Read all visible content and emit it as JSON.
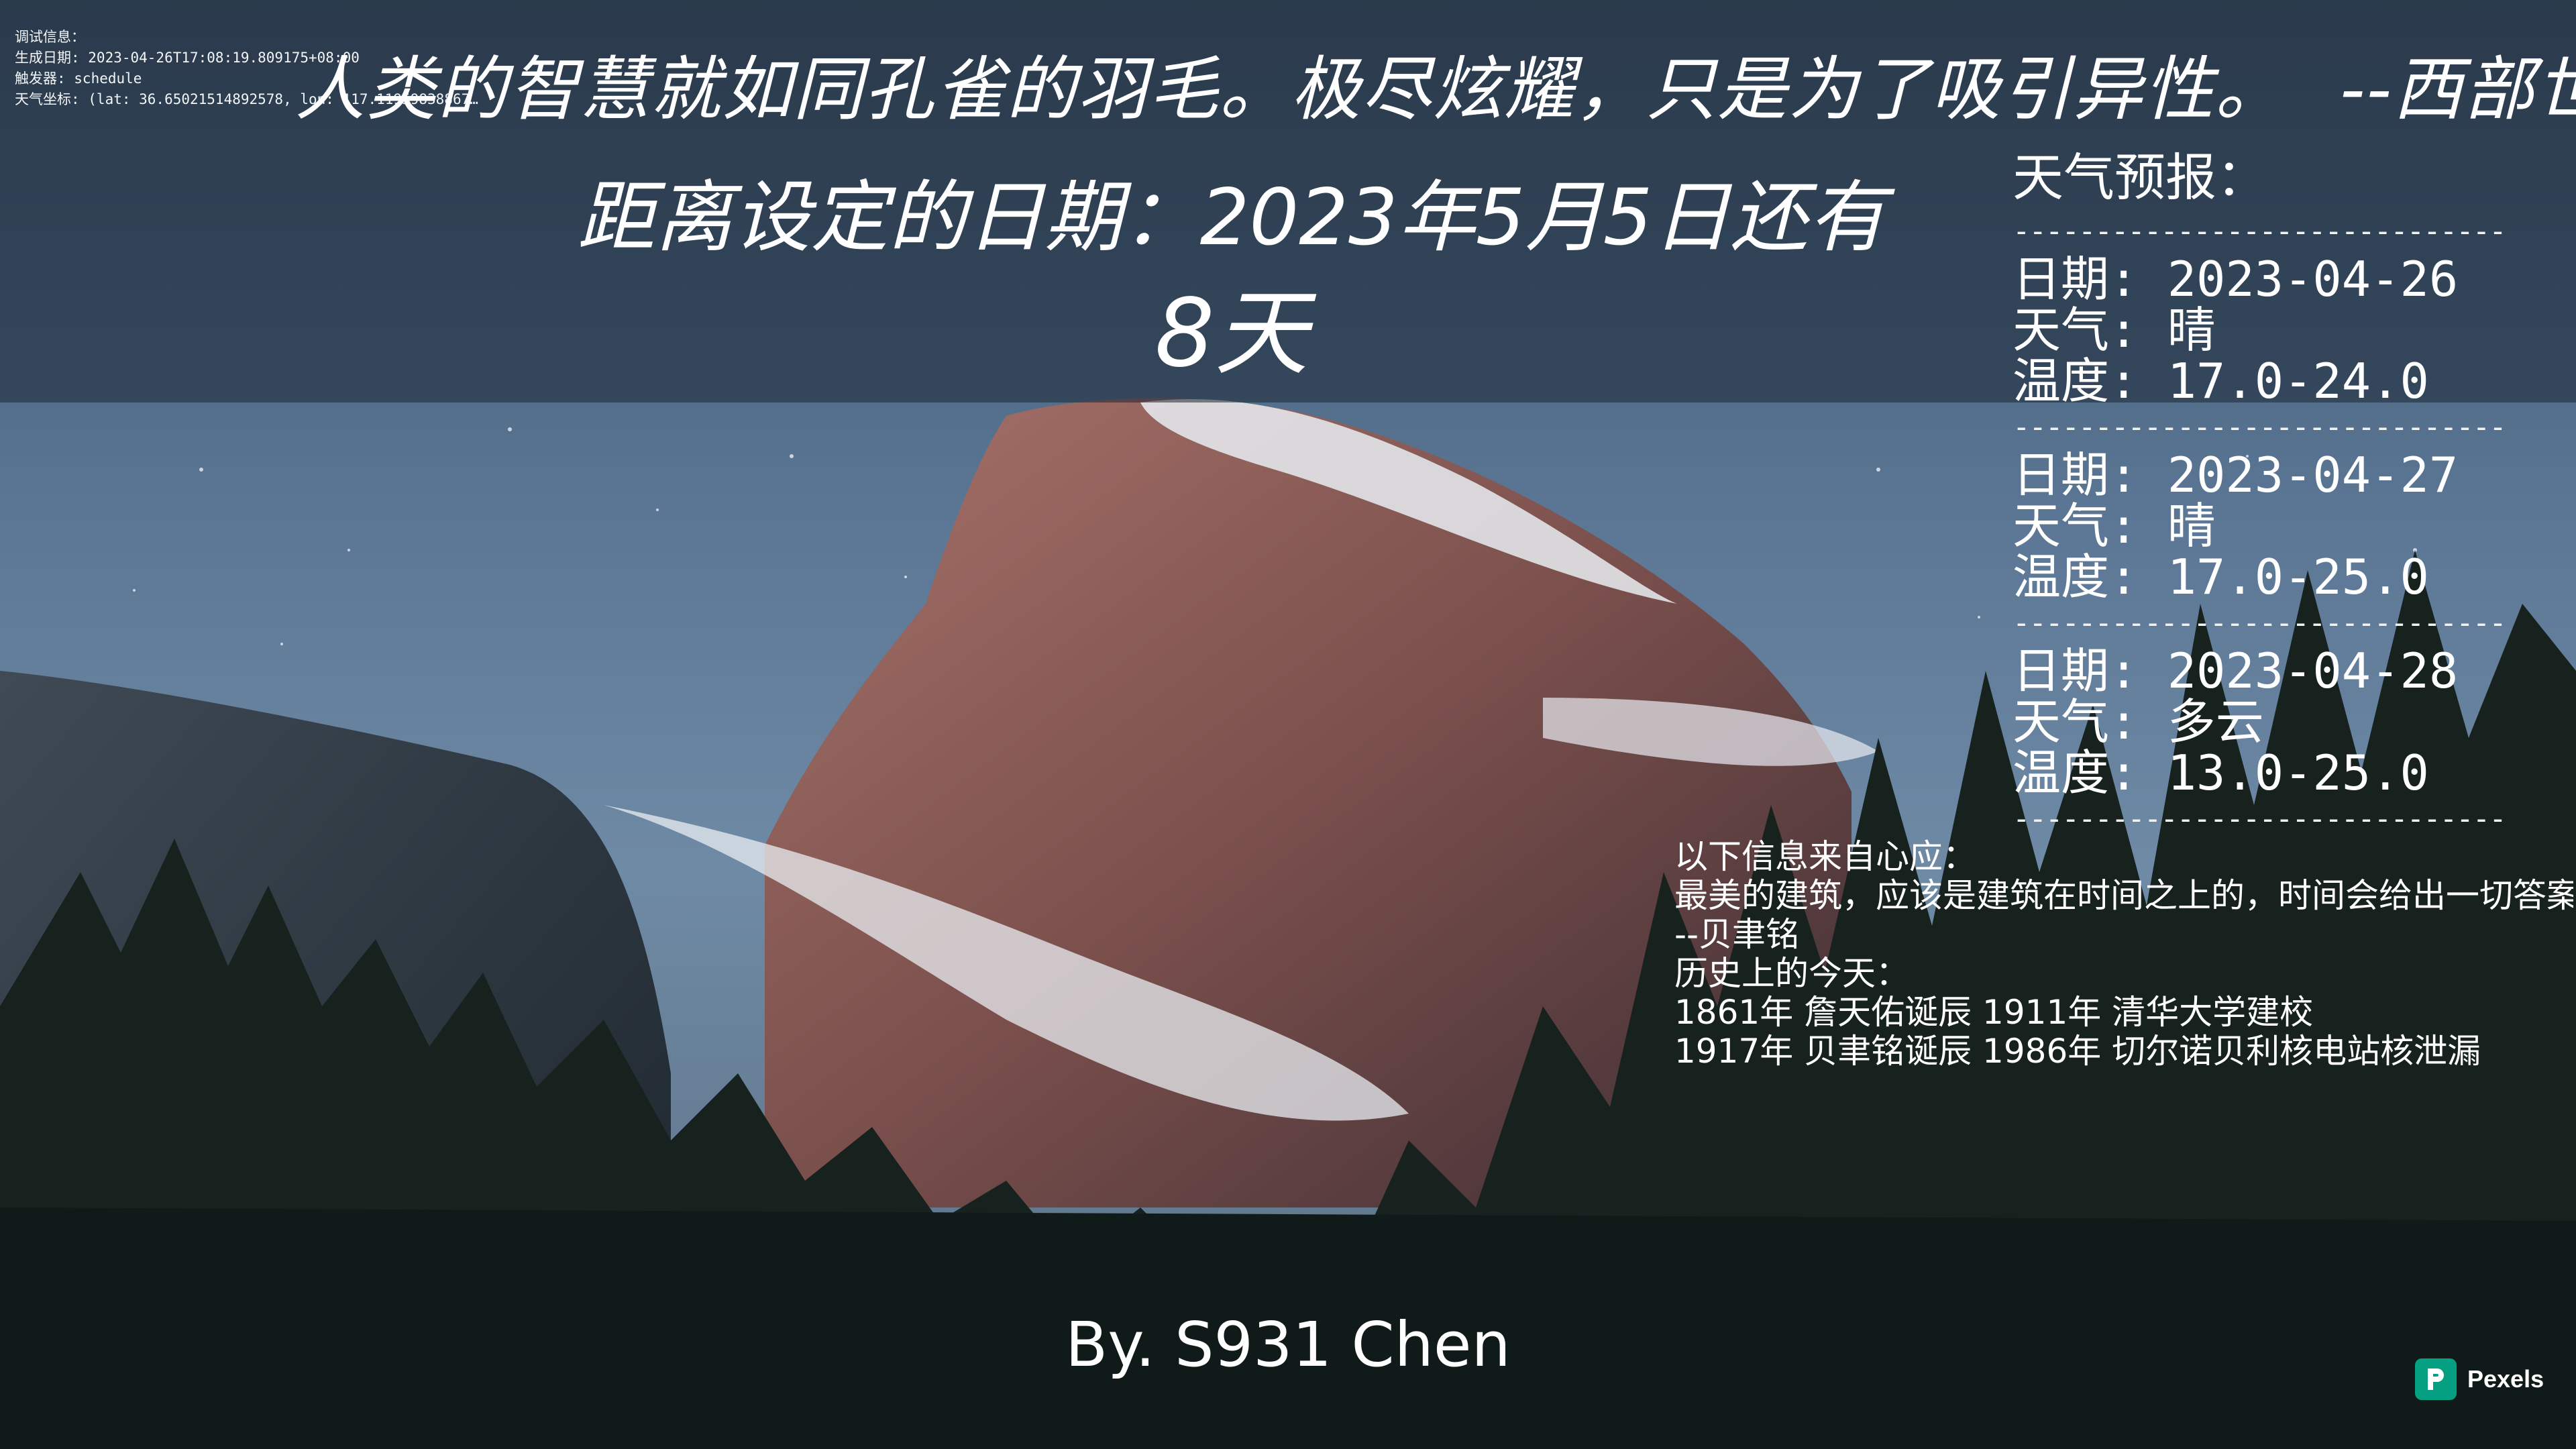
{
  "debug": {
    "lines": [
      "调试信息：",
      "生成日期: 2023-04-26T17:08:19.809175+08:00",
      "触发器: schedule",
      "天气坐标: (lat: 36.65021514892578, lon: 117.119598388671875)"
    ]
  },
  "quote": {
    "text": "人类的智慧就如同孔雀的羽毛。极尽炫耀，只是为了吸引异性。",
    "author": "--西部世界"
  },
  "countdown": {
    "title": "距离设定的日期：2023年5月5日还有",
    "days": "8天"
  },
  "weather": {
    "title": "天气预报：",
    "divider": "--------------------------------",
    "days": [
      {
        "date": "日期: 2023-04-26",
        "weather": "天气: 晴",
        "temp": "温度: 17.0-24.0"
      },
      {
        "date": "日期: 2023-04-27",
        "weather": "天气: 晴",
        "temp": "温度: 17.0-25.0"
      },
      {
        "date": "日期: 2023-04-28",
        "weather": "天气: 多云",
        "temp": "温度: 13.0-25.0"
      }
    ]
  },
  "info": {
    "lines": [
      "以下信息来自心应：",
      "最美的建筑，应该是建筑在时间之上的，时间会给出一切答案。",
      "--贝聿铭",
      "历史上的今天：",
      "1861年 詹天佑诞辰  1911年 清华大学建校",
      "1917年 贝聿铭诞辰  1986年 切尔诺贝利核电站核泄漏"
    ]
  },
  "credit": "By. S931 Chen",
  "watermark": {
    "label": "Pexels",
    "color": "#05a081"
  }
}
